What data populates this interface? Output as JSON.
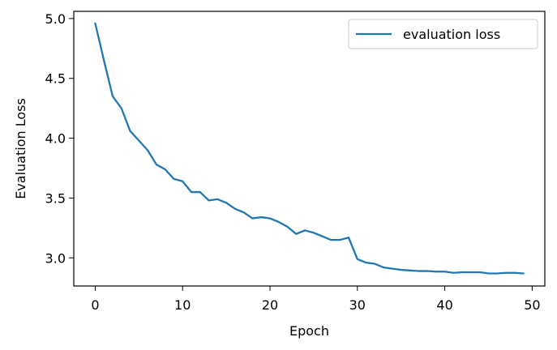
{
  "chart_data": {
    "type": "line",
    "title": "",
    "xlabel": "Epoch",
    "ylabel": "Evaluation Loss",
    "xlim": [
      -2.45,
      51.45
    ],
    "ylim": [
      2.765,
      5.06
    ],
    "xticks": [
      0,
      10,
      20,
      30,
      40,
      50
    ],
    "yticks": [
      3.0,
      3.5,
      4.0,
      4.5,
      5.0
    ],
    "xtick_labels": [
      "0",
      "10",
      "20",
      "30",
      "40",
      "50"
    ],
    "ytick_labels": [
      "3.0",
      "3.5",
      "4.0",
      "4.5",
      "5.0"
    ],
    "grid": false,
    "legend_position": "top-right",
    "series": [
      {
        "name": "evaluation loss",
        "color": "#1f77b4",
        "x": [
          0,
          1,
          2,
          3,
          4,
          5,
          6,
          7,
          8,
          9,
          10,
          11,
          12,
          13,
          14,
          15,
          16,
          17,
          18,
          19,
          20,
          21,
          22,
          23,
          24,
          25,
          26,
          27,
          28,
          29,
          30,
          31,
          32,
          33,
          34,
          35,
          36,
          37,
          38,
          39,
          40,
          41,
          42,
          43,
          44,
          45,
          46,
          47,
          48,
          49
        ],
        "values": [
          4.96,
          4.65,
          4.35,
          4.25,
          4.06,
          3.98,
          3.9,
          3.78,
          3.74,
          3.66,
          3.64,
          3.55,
          3.55,
          3.48,
          3.49,
          3.46,
          3.41,
          3.38,
          3.33,
          3.34,
          3.33,
          3.3,
          3.26,
          3.2,
          3.23,
          3.21,
          3.18,
          3.15,
          3.15,
          3.17,
          2.99,
          2.96,
          2.95,
          2.92,
          2.91,
          2.9,
          2.895,
          2.89,
          2.89,
          2.885,
          2.885,
          2.875,
          2.88,
          2.88,
          2.88,
          2.87,
          2.87,
          2.875,
          2.875,
          2.87
        ]
      }
    ]
  }
}
